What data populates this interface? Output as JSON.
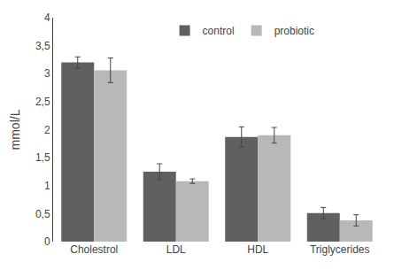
{
  "chart_data": {
    "type": "bar",
    "categories": [
      "Cholestrol",
      "LDL",
      "HDL",
      "Triglycerides"
    ],
    "series": [
      {
        "name": "control",
        "color": "#606060",
        "values": [
          3.2,
          1.25,
          1.87,
          0.51
        ],
        "errors": [
          0.1,
          0.14,
          0.18,
          0.1
        ]
      },
      {
        "name": "probiotic",
        "color": "#b8b8b8",
        "values": [
          3.06,
          1.08,
          1.9,
          0.38
        ],
        "errors": [
          0.22,
          0.04,
          0.14,
          0.1
        ]
      }
    ],
    "ylabel": "mmol/L",
    "ylim": [
      0,
      4
    ],
    "yticks": [
      0,
      {
        "value": 0.5,
        "label": "0,5"
      },
      1,
      {
        "value": 1.5,
        "label": "1,5"
      },
      2,
      {
        "value": 2.5,
        "label": "2,5"
      },
      3,
      {
        "value": 3.5,
        "label": "3,5"
      },
      4
    ],
    "grid": false,
    "legend": "top"
  }
}
